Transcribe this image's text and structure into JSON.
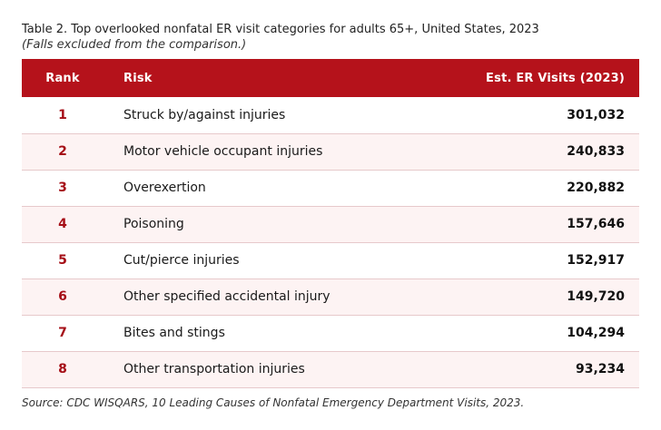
{
  "caption": {
    "title": "Table 2. Top overlooked nonfatal ER visit categories for adults 65+, United States, 2023",
    "subtitle": "(Falls excluded from the comparison.)"
  },
  "table": {
    "headers": {
      "rank": "Rank",
      "risk": "Risk",
      "visits": "Est. ER Visits (2023)"
    },
    "rows": [
      {
        "rank": "1",
        "risk": "Struck by/against injuries",
        "visits": "301,032"
      },
      {
        "rank": "2",
        "risk": "Motor vehicle occupant injuries",
        "visits": "240,833"
      },
      {
        "rank": "3",
        "risk": "Overexertion",
        "visits": "220,882"
      },
      {
        "rank": "4",
        "risk": "Poisoning",
        "visits": "157,646"
      },
      {
        "rank": "5",
        "risk": "Cut/pierce injuries",
        "visits": "152,917"
      },
      {
        "rank": "6",
        "risk": "Other specified accidental injury",
        "visits": "149,720"
      },
      {
        "rank": "7",
        "risk": "Bites and stings",
        "visits": "104,294"
      },
      {
        "rank": "8",
        "risk": "Other transportation injuries",
        "visits": "93,234"
      }
    ]
  },
  "source": "Source: CDC WISQARS, 10 Leading Causes of Nonfatal Emergency Department Visits, 2023.",
  "colors": {
    "header_bg": "#b5121b",
    "rank_text": "#a50e16",
    "stripe_bg": "#fdf3f3"
  }
}
